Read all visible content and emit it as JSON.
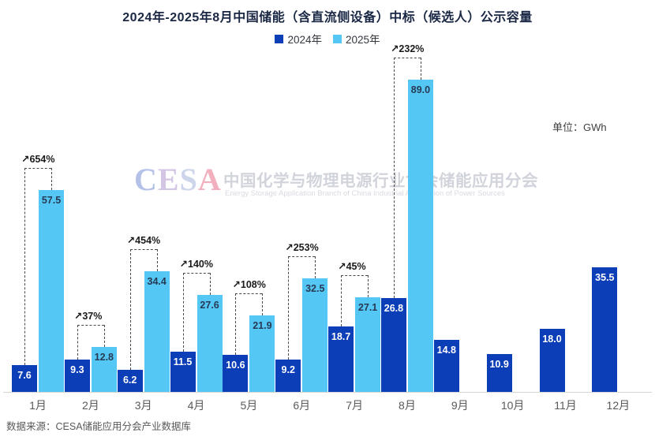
{
  "title": "2024年-2025年8月中国储能（含直流侧设备）中标（候选人）公示容量",
  "legend": {
    "items": [
      {
        "label": "2024年",
        "color": "#0c3eb8"
      },
      {
        "label": "2025年",
        "color": "#55c7f4"
      }
    ]
  },
  "unit_label": "单位：GWh",
  "watermark": {
    "logo_letters": [
      {
        "ch": "C",
        "color": "#b4c2e8"
      },
      {
        "ch": "E",
        "color": "#d2c6e4"
      },
      {
        "ch": "S",
        "color": "#ccd5ea"
      },
      {
        "ch": "A",
        "color": "#f2b0bf"
      }
    ],
    "cn": "中国化学与物理电源行业协会储能应用分会",
    "en": "Energy Storage Application Branch of China Industrial Association of Power Sources"
  },
  "source": "数据来源：CESA储能应用分会产业数据库",
  "colors": {
    "series_2024": "#0c3eb8",
    "series_2025": "#55c7f4",
    "label_on_dark": "#ffffff",
    "label_on_light": "#273a55",
    "growth_text": "#1a1a1a",
    "dashed_line": "#4a4a4a",
    "axis_line": "#d6d6d6",
    "axis_label": "#595959",
    "title": "#1a2744"
  },
  "chart_data": {
    "type": "bar",
    "unit": "GWh",
    "title": "2024年-2025年8月中国储能（含直流侧设备）中标（候选人）公示容量",
    "categories": [
      "1月",
      "2月",
      "3月",
      "4月",
      "5月",
      "6月",
      "7月",
      "8月",
      "9月",
      "10月",
      "11月",
      "12月"
    ],
    "series": [
      {
        "name": "2024年",
        "values": [
          7.6,
          9.3,
          6.2,
          11.5,
          10.6,
          9.2,
          18.7,
          26.8,
          14.8,
          10.9,
          18.0,
          35.5
        ]
      },
      {
        "name": "2025年",
        "values": [
          57.5,
          12.8,
          34.4,
          27.6,
          21.9,
          32.5,
          27.1,
          89.0,
          null,
          null,
          null,
          null
        ]
      }
    ],
    "growth_vs_prior_year": [
      "↗654%",
      "↗37%",
      "↗454%",
      "↗140%",
      "↗108%",
      "↗253%",
      "↗45%",
      "↗232%",
      null,
      null,
      null,
      null
    ],
    "ylim": [
      0,
      93
    ],
    "grid": false,
    "legend_position": "top"
  }
}
